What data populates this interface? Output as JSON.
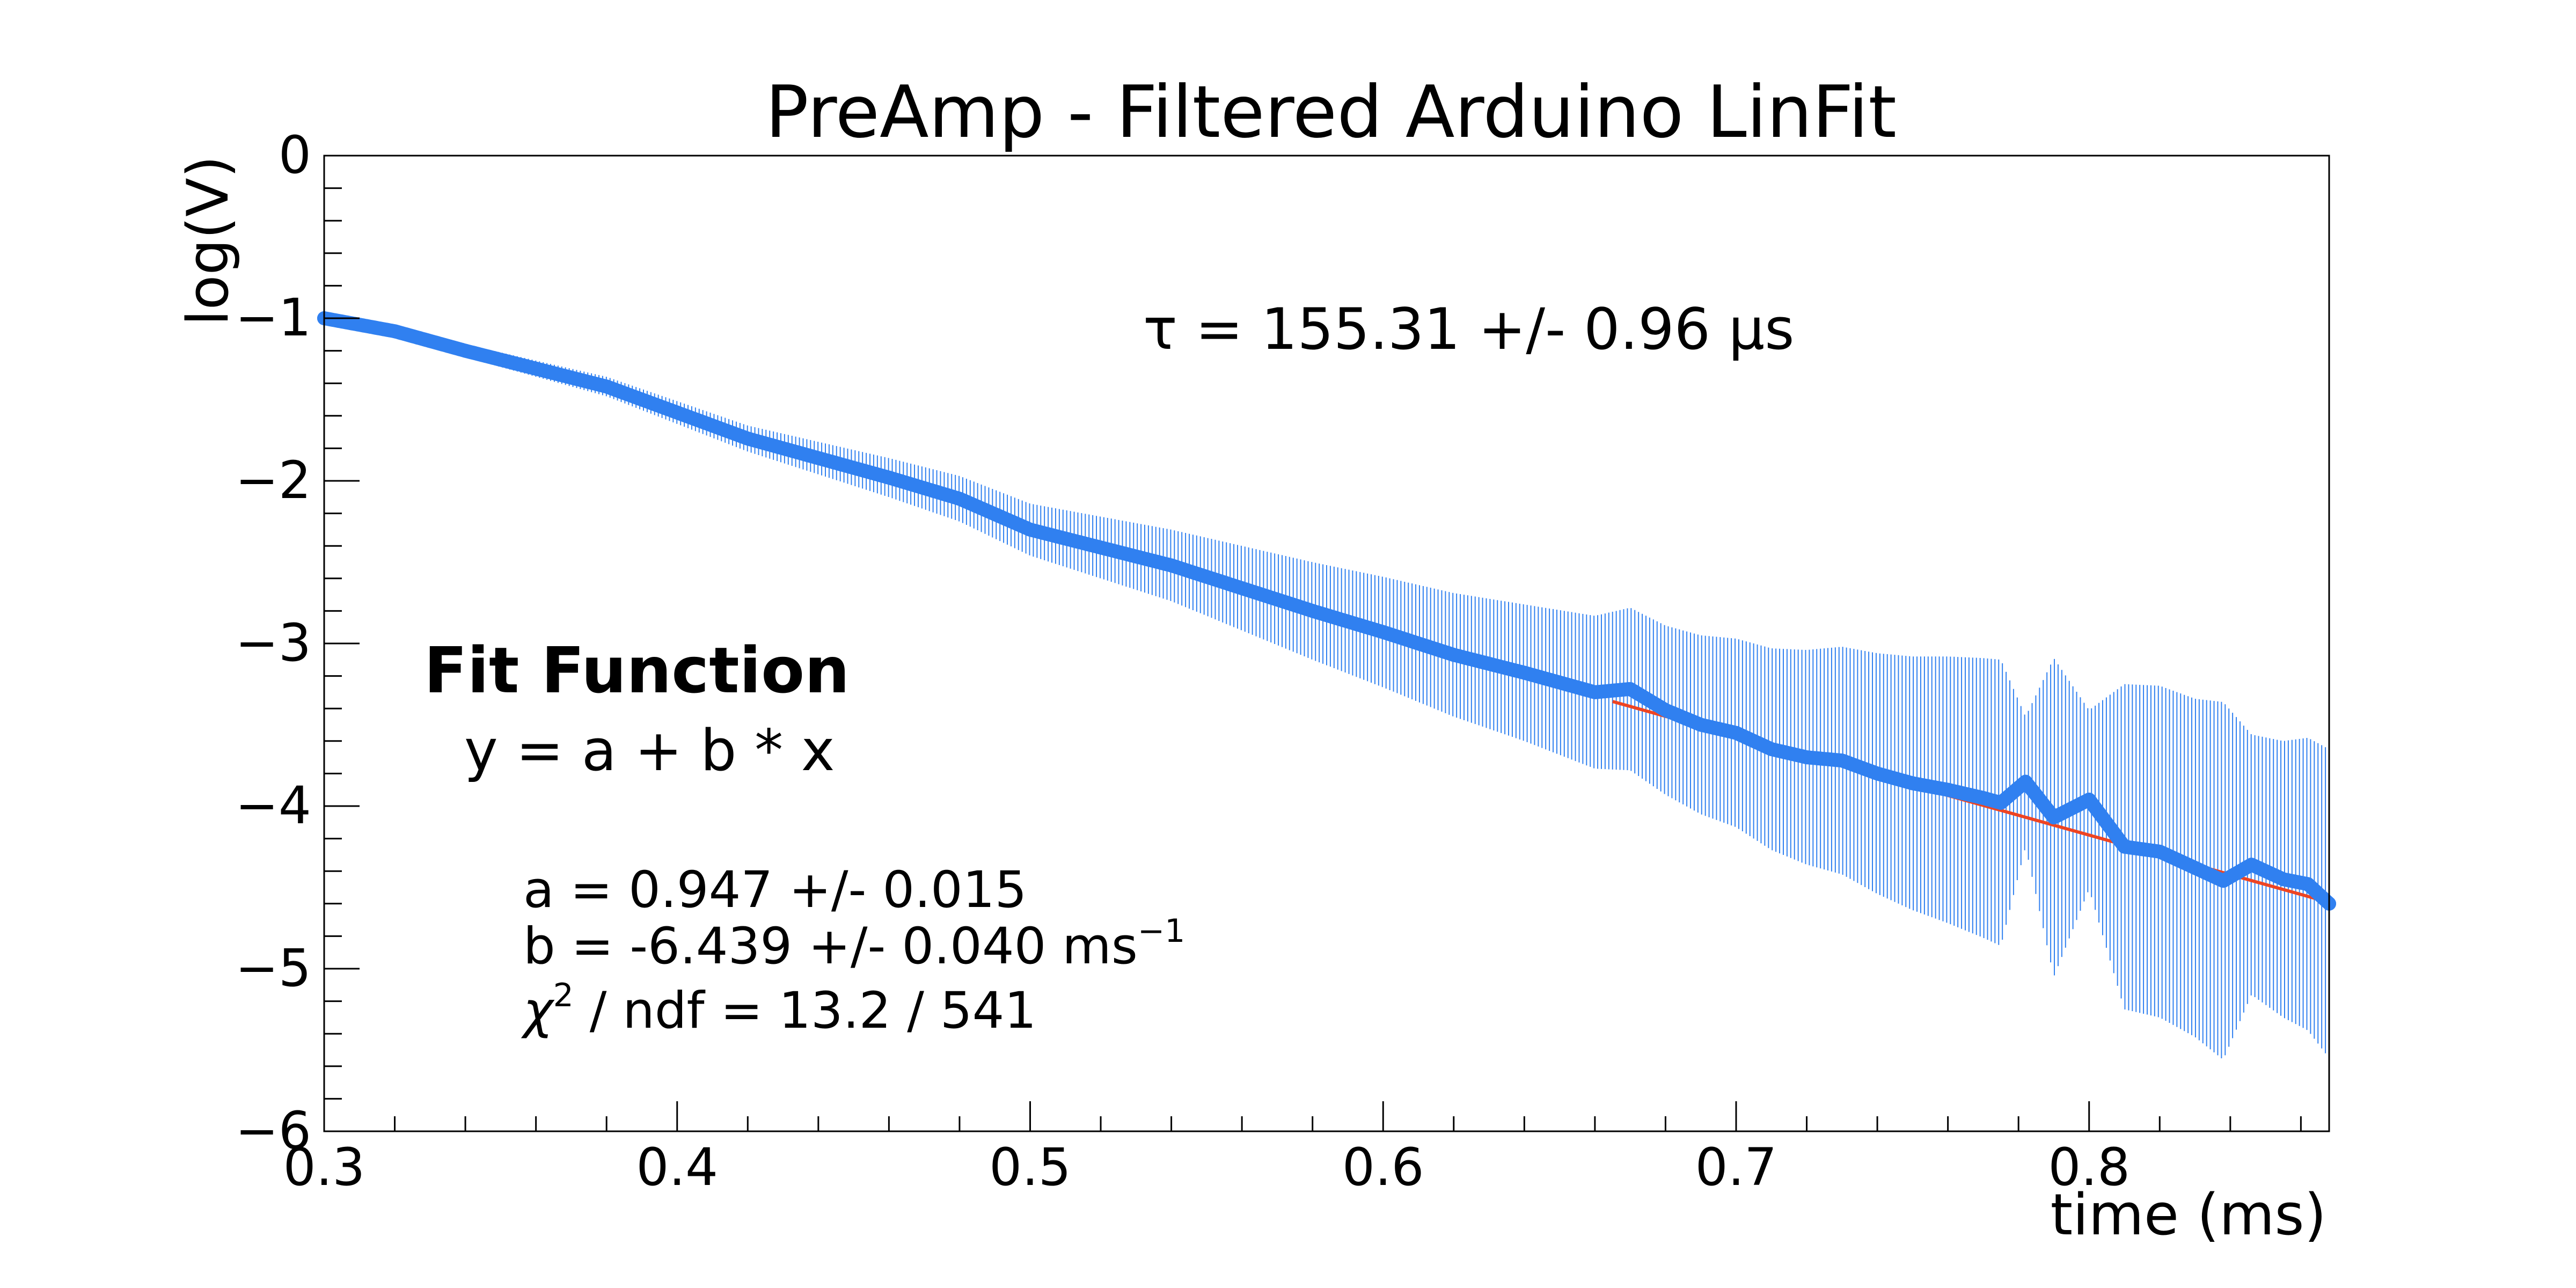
{
  "chart_data": {
    "type": "scatter",
    "title": "PreAmp - Filtered Arduino LinFit",
    "xlabel": "time (ms)",
    "ylabel": "log(V)",
    "xlim": [
      0.3,
      0.868
    ],
    "ylim": [
      -6,
      0
    ],
    "x_ticks": [
      0.3,
      0.4,
      0.5,
      0.6,
      0.7,
      0.8
    ],
    "x_tick_labels": [
      "0.3",
      "0.4",
      "0.5",
      "0.6",
      "0.7",
      "0.8"
    ],
    "y_ticks": [
      0,
      -1,
      -2,
      -3,
      -4,
      -5,
      -6
    ],
    "y_tick_labels": [
      "0",
      "−1",
      "−2",
      "−3",
      "−4",
      "−5",
      "−6"
    ],
    "series": [
      {
        "name": "data",
        "color": "#3080f0",
        "points": [
          [
            0.3,
            -1.0
          ],
          [
            0.32,
            -1.08
          ],
          [
            0.34,
            -1.2
          ],
          [
            0.36,
            -1.31
          ],
          [
            0.38,
            -1.42
          ],
          [
            0.4,
            -1.58
          ],
          [
            0.42,
            -1.74
          ],
          [
            0.44,
            -1.86
          ],
          [
            0.46,
            -1.98
          ],
          [
            0.48,
            -2.11
          ],
          [
            0.5,
            -2.3
          ],
          [
            0.52,
            -2.41
          ],
          [
            0.54,
            -2.52
          ],
          [
            0.56,
            -2.66
          ],
          [
            0.58,
            -2.8
          ],
          [
            0.6,
            -2.93
          ],
          [
            0.62,
            -3.07
          ],
          [
            0.64,
            -3.18
          ],
          [
            0.66,
            -3.3
          ],
          [
            0.67,
            -3.28
          ],
          [
            0.68,
            -3.41
          ],
          [
            0.69,
            -3.5
          ],
          [
            0.7,
            -3.55
          ],
          [
            0.71,
            -3.65
          ],
          [
            0.72,
            -3.7
          ],
          [
            0.73,
            -3.72
          ],
          [
            0.74,
            -3.8
          ],
          [
            0.75,
            -3.86
          ],
          [
            0.76,
            -3.9
          ],
          [
            0.77,
            -3.95
          ],
          [
            0.775,
            -3.98
          ],
          [
            0.782,
            -3.85
          ],
          [
            0.79,
            -4.07
          ],
          [
            0.8,
            -3.96
          ],
          [
            0.81,
            -4.25
          ],
          [
            0.82,
            -4.28
          ],
          [
            0.83,
            -4.38
          ],
          [
            0.838,
            -4.46
          ],
          [
            0.846,
            -4.36
          ],
          [
            0.855,
            -4.45
          ],
          [
            0.862,
            -4.48
          ],
          [
            0.868,
            -4.6
          ]
        ],
        "err": [
          0.02,
          0.03,
          0.04,
          0.05,
          0.06,
          0.07,
          0.08,
          0.1,
          0.12,
          0.14,
          0.16,
          0.19,
          0.22,
          0.26,
          0.3,
          0.34,
          0.38,
          0.42,
          0.47,
          0.5,
          0.52,
          0.55,
          0.58,
          0.62,
          0.66,
          0.7,
          0.74,
          0.78,
          0.82,
          0.86,
          0.88,
          0.4,
          0.98,
          0.55,
          1.0,
          1.02,
          1.04,
          1.1,
          0.8,
          0.85,
          0.9,
          0.95
        ]
      },
      {
        "name": "fit",
        "color": "#ee4422",
        "x_range": [
          0.665,
          0.868
        ],
        "a": 0.947,
        "b": -6.439
      }
    ]
  },
  "annotations": {
    "tau": "τ = 155.31 +/- 0.96  μs",
    "fit_heading": "Fit Function",
    "fit_formula": "y = a + b * x",
    "param_a": "a = 0.947 +/- 0.015",
    "param_b": "b = -6.439 +/- 0.040  ms",
    "param_b_exp": "−1",
    "chi2_symbol": "χ",
    "chi2_exp": "2",
    "chi2_rest": " / ndf = 13.2 / 541"
  }
}
